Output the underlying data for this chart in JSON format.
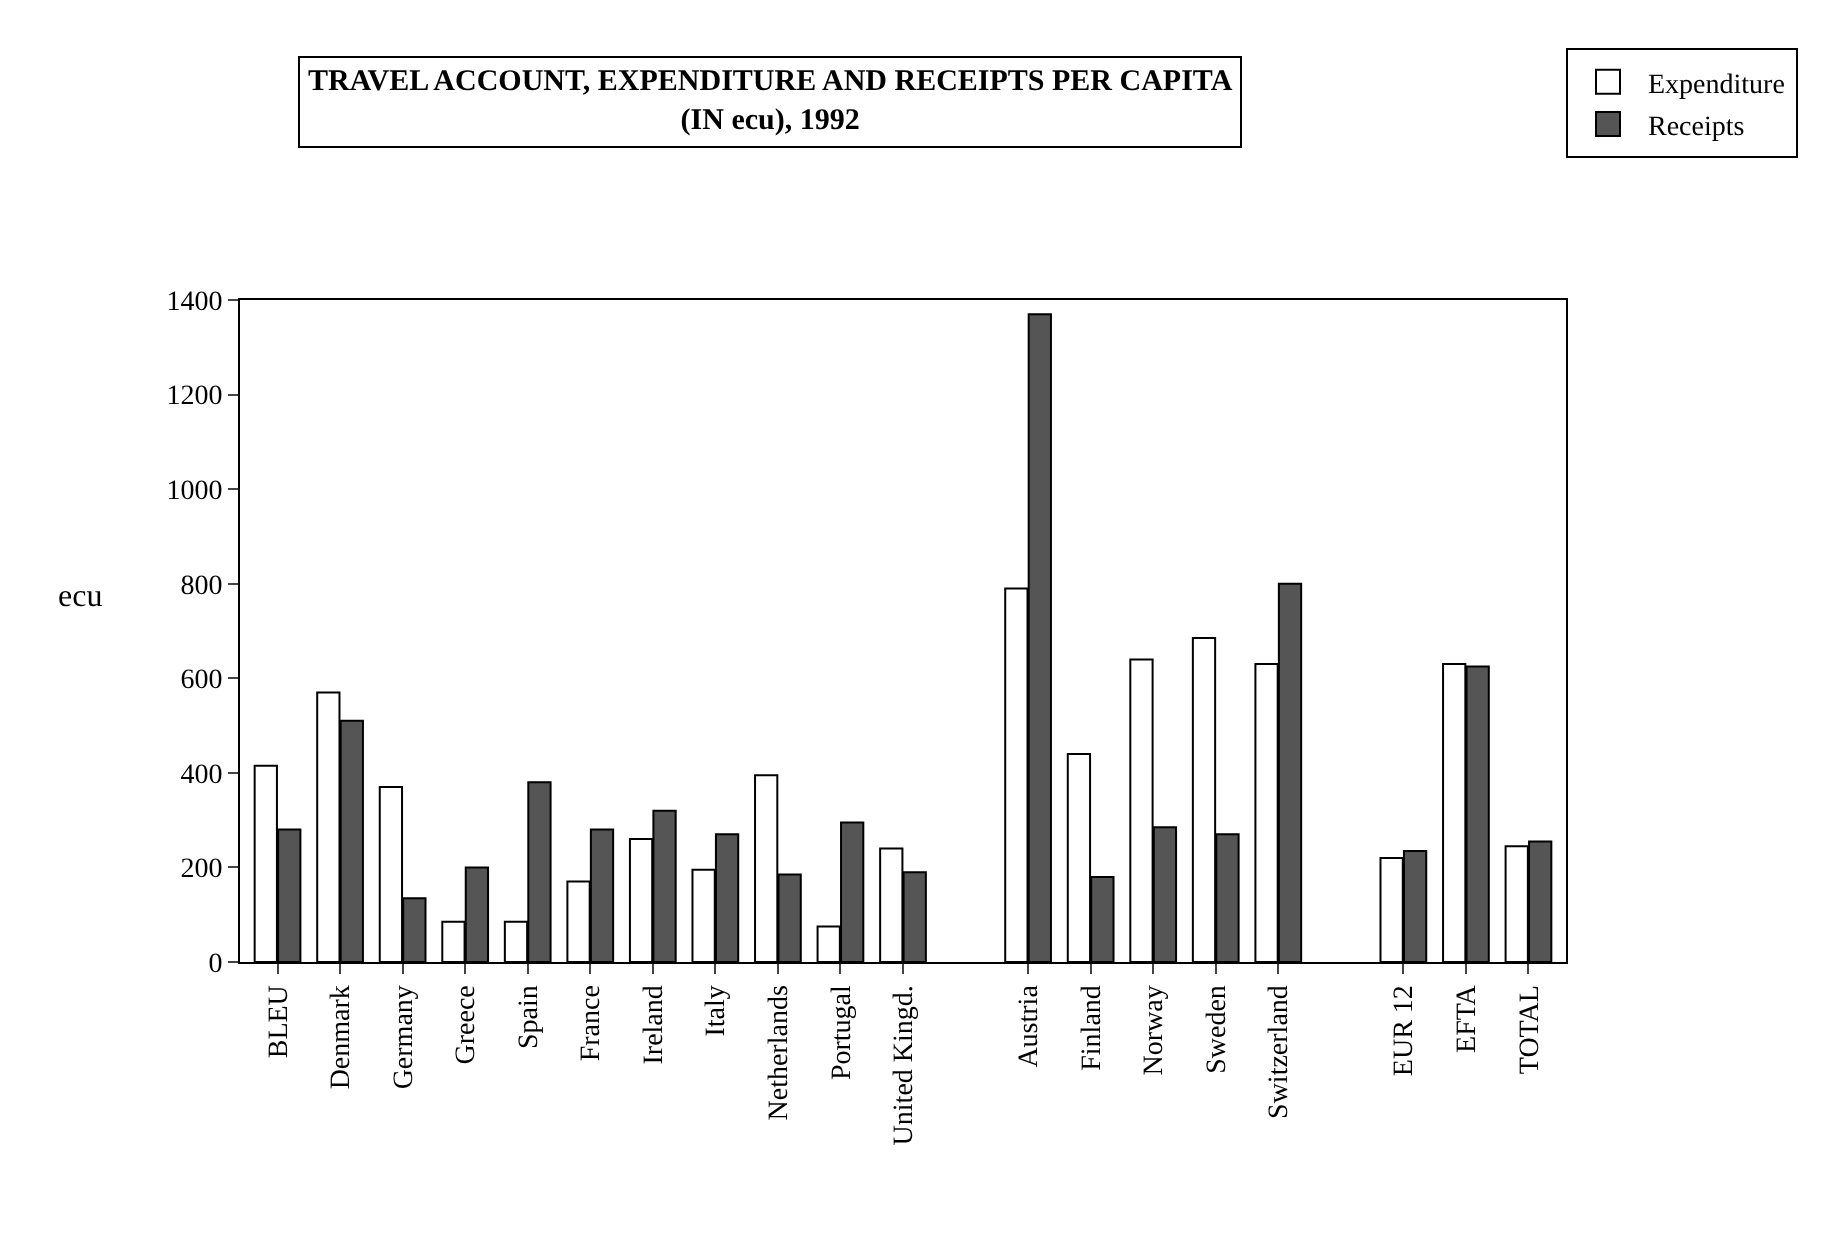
{
  "chart_data": {
    "type": "bar",
    "title": "TRAVEL ACCOUNT, EXPENDITURE AND RECEIPTS PER CAPITA\n(IN ecu), 1992",
    "ylabel": "ecu",
    "categories": [
      "BLEU",
      "Denmark",
      "Germany",
      "Greece",
      "Spain",
      "France",
      "Ireland",
      "Italy",
      "Netherlands",
      "Portugal",
      "United Kingd.",
      null,
      "Austria",
      "Finland",
      "Norway",
      "Sweden",
      "Switzerland",
      null,
      "EUR 12",
      "EFTA",
      "TOTAL"
    ],
    "series": [
      {
        "name": "Expenditure",
        "color": "#ffffff",
        "values": [
          415,
          570,
          370,
          85,
          85,
          170,
          260,
          195,
          395,
          75,
          240,
          null,
          790,
          440,
          640,
          685,
          630,
          null,
          220,
          630,
          245
        ]
      },
      {
        "name": "Receipts",
        "color": "#555555",
        "values": [
          280,
          510,
          135,
          200,
          380,
          280,
          320,
          270,
          185,
          295,
          190,
          null,
          1370,
          180,
          285,
          270,
          800,
          null,
          235,
          625,
          255
        ]
      }
    ],
    "ylim": [
      0,
      1400
    ],
    "yticks": [
      0,
      200,
      400,
      600,
      800,
      1000,
      1200,
      1400
    ],
    "legend": "top right"
  }
}
